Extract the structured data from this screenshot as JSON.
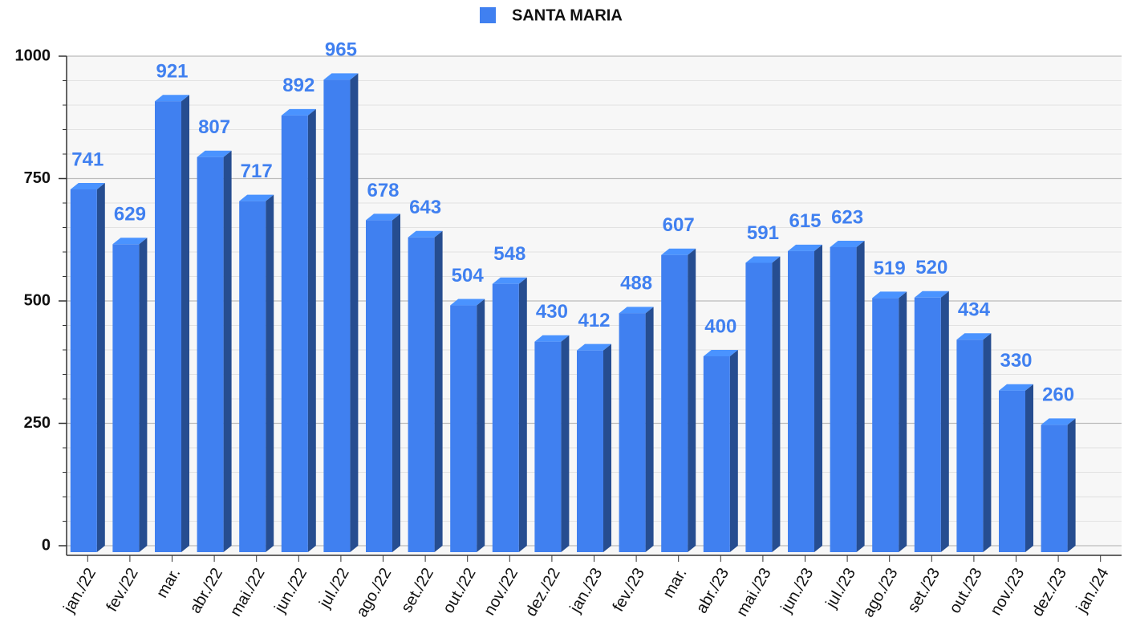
{
  "chart_data": {
    "type": "bar3d",
    "categories": [
      "jan./22",
      "fev./22",
      "mar.",
      "abr./22",
      "mai./22",
      "jun./22",
      "jul./22",
      "ago./22",
      "set./22",
      "out./22",
      "nov./22",
      "dez./22",
      "jan./23",
      "fev./23",
      "mar.",
      "abr./23",
      "mai./23",
      "jun./23",
      "jul./23",
      "ago./23",
      "set./23",
      "out./23",
      "nov./23",
      "dez./23",
      "jan./24"
    ],
    "series": [
      {
        "name": "SANTA MARIA",
        "color": "#4080f0",
        "values": [
          741,
          629,
          921,
          807,
          717,
          892,
          965,
          678,
          643,
          504,
          548,
          430,
          412,
          488,
          607,
          400,
          591,
          615,
          623,
          519,
          520,
          434,
          330,
          260,
          null
        ]
      }
    ],
    "ylim": [
      0,
      1000
    ],
    "yticks": [
      0,
      250,
      500,
      750,
      1000
    ],
    "grid": true,
    "legend": "top"
  }
}
